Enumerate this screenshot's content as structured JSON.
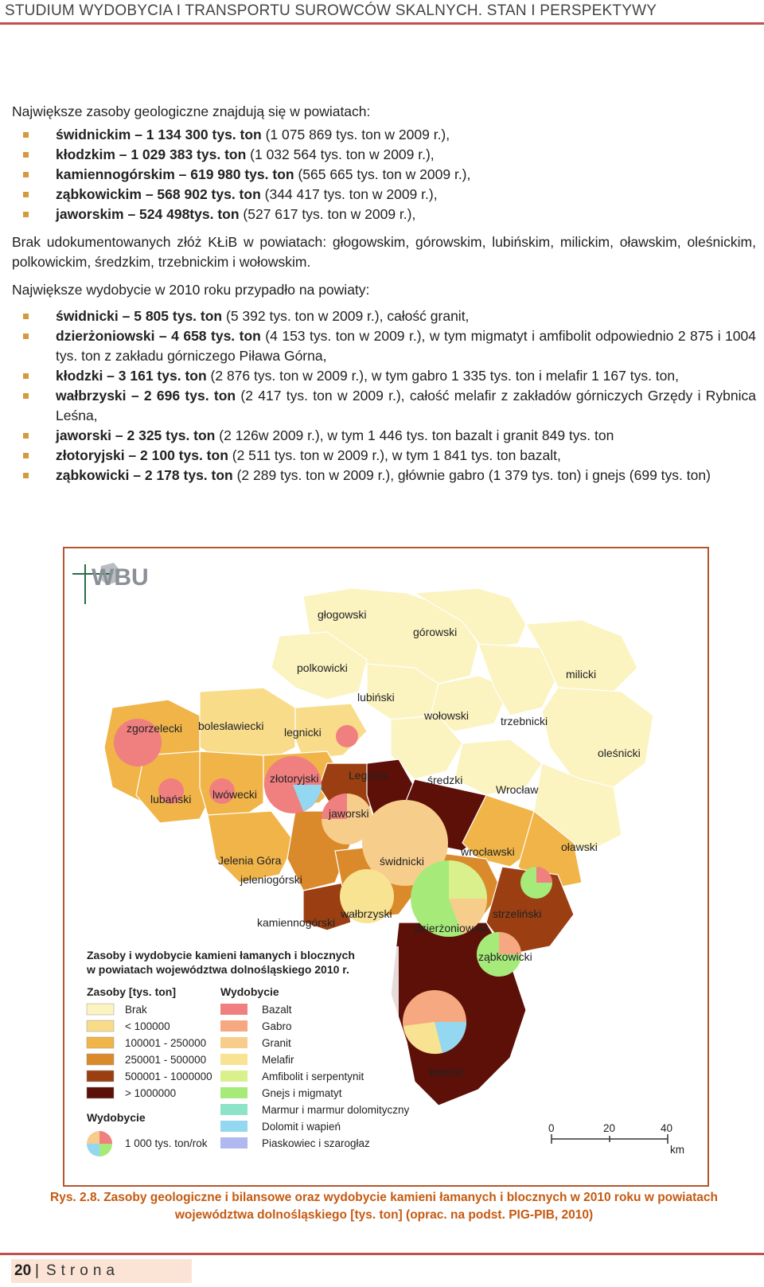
{
  "header": {
    "title": "STUDIUM WYDOBYCIA I TRANSPORTU SUROWCÓW SKALNYCH. STAN I PERSPEKTYWY"
  },
  "reserves": {
    "intro": "Największe zasoby geologiczne znajdują się w powiatach:",
    "items": [
      {
        "bold": "świdnickim – 1 134 300 tys. ton",
        "rest": " (1 075 869 tys. ton w 2009 r.),"
      },
      {
        "bold": "kłodzkim – 1 029 383 tys. ton",
        "rest": " (1 032 564 tys. ton w 2009 r.),"
      },
      {
        "bold": "kamiennogórskim – 619 980 tys. ton",
        "rest": " (565 665 tys. ton w 2009 r.),"
      },
      {
        "bold": "ząbkowickim – 568 902 tys. ton",
        "rest": " (344 417 tys. ton w 2009 r.),"
      },
      {
        "bold": "jaworskim – 524 498tys. ton",
        "rest": " (527 617 tys. ton w 2009 r.),"
      }
    ]
  },
  "no_deposits": "Brak udokumentowanych złóż KŁiB w powiatach: głogowskim, górowskim, lubińskim, milickim, oławskim, oleśnickim, polkowickim, średzkim, trzebnickim i wołowskim.",
  "production": {
    "intro": "Największe wydobycie w 2010 roku przypadło na powiaty:",
    "items": [
      {
        "bold": "świdnicki – 5 805 tys. ton",
        "rest": " (5 392 tys. ton w 2009 r.), całość granit,"
      },
      {
        "bold": "dzierżoniowski – 4 658 tys. ton",
        "rest": " (4 153 tys. ton w 2009 r.), w tym migmatyt i amfibolit odpowiednio 2 875 i 1004 tys. ton z zakładu górniczego Piława Górna,"
      },
      {
        "bold": "kłodzki – 3 161 tys. ton",
        "rest": " (2 876 tys. ton w 2009 r.), w tym  gabro 1 335 tys. ton i melafir 1 167 tys. ton,"
      },
      {
        "bold": "wałbrzyski – 2 696 tys. ton",
        "rest": " (2 417 tys. ton w 2009 r.), całość melafir z zakładów górniczych Grzędy i Rybnica Leśna,"
      },
      {
        "bold": "jaworski – 2 325 tys. ton",
        "rest": " (2 126w 2009 r.), w tym 1 446 tys. ton bazalt i granit 849 tys. ton"
      },
      {
        "bold": "złotoryjski – 2 100 tys. ton",
        "rest": " (2 511 tys. ton w 2009 r.), w tym 1 841 tys. ton bazalt,"
      },
      {
        "bold": "ząbkowicki – 2 178 tys. ton",
        "rest": " (2 289 tys. ton w 2009 r.),  głównie gabro (1 379 tys. ton) i gnejs (699 tys. ton)"
      }
    ]
  },
  "map": {
    "logo": "WBU",
    "districts": [
      "głogowski",
      "górowski",
      "polkowicki",
      "milicki",
      "lubiński",
      "wołowski",
      "trzebnicki",
      "zgorzelecki",
      "bolesławiecki",
      "legnicki",
      "oleśnicki",
      "Legnica",
      "złotoryjski",
      "średzki",
      "Wrocław",
      "lubański",
      "lwówecki",
      "jaworski",
      "wrocławski",
      "oławski",
      "Jelenia Góra",
      "świdnicki",
      "jeleniogórski",
      "wałbrzyski",
      "strzeliński",
      "kamiennogórski",
      "dzierżoniowski",
      "ząbkowicki",
      "kłodzki"
    ],
    "legend": {
      "title_line1": "Zasoby i wydobycie kamieni łamanych i blocznych",
      "title_line2": "w powiatach województwa dolnośląskiego 2010 r.",
      "reserves_title": "Zasoby [tys. ton]",
      "reserves_classes": [
        {
          "label": "Brak",
          "color": "#fbf3c0"
        },
        {
          "label": "< 100000",
          "color": "#f8dc8a"
        },
        {
          "label": "100001 - 250000",
          "color": "#f0b449"
        },
        {
          "label": "250001 - 500000",
          "color": "#da8a2b"
        },
        {
          "label": "500001 - 1000000",
          "color": "#9b3f13"
        },
        {
          "label": "> 1000000",
          "color": "#5c1008"
        }
      ],
      "production_title": "Wydobycie",
      "rock_types": [
        {
          "label": "Bazalt",
          "color": "#f07f7f"
        },
        {
          "label": "Gabro",
          "color": "#f6a880"
        },
        {
          "label": "Granit",
          "color": "#f7cd8c"
        },
        {
          "label": "Melafir",
          "color": "#f8e392"
        },
        {
          "label": "Amfibolit i serpentynit",
          "color": "#d9f08c"
        },
        {
          "label": "Gnejs i migmatyt",
          "color": "#a6eb7a"
        },
        {
          "label": "Marmur i marmur dolomityczny",
          "color": "#8de3c8"
        },
        {
          "label": "Dolomit i wapień",
          "color": "#93d8f0"
        },
        {
          "label": "Piaskowiec i szarogłaz",
          "color": "#b0b8f0"
        }
      ],
      "production_symbol_title": "Wydobycie",
      "production_symbol_label": "1 000 tys. ton/rok",
      "scale": [
        "0",
        "20",
        "40"
      ],
      "scale_unit": "km"
    }
  },
  "caption": "Rys. 2.8. Zasoby geologiczne i bilansowe oraz wydobycie kamieni łamanych i blocznych w 2010 roku w powiatach województwa dolnośląskiego [tys. ton] (oprac. na podst. PIG-PIB, 2010)",
  "footer": {
    "page": "20",
    "separator": "|",
    "label": "Strona"
  }
}
